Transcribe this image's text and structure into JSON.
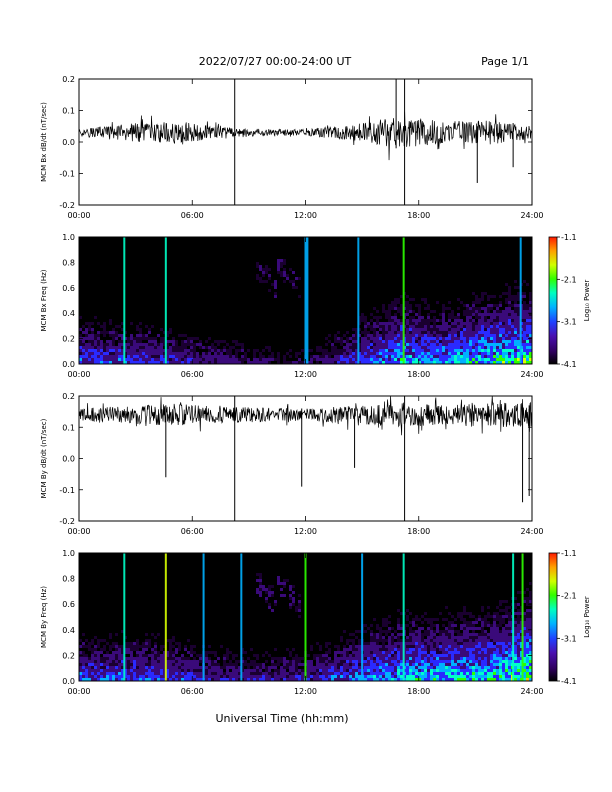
{
  "header": {
    "title": "2022/07/27  00:00-24:00 UT",
    "page": "Page 1/1"
  },
  "footer": {
    "xlabel": "Universal Time (hh:mm)"
  },
  "colors": {
    "trace": "#000000",
    "colormap": [
      "#000000",
      "#1a0030",
      "#3a0a7a",
      "#2a2aff",
      "#00b0ff",
      "#00ffc8",
      "#2dff00",
      "#d8ff00",
      "#ffb400",
      "#ff1e00"
    ]
  },
  "chart_data": [
    {
      "type": "line",
      "panel": "bx-dbdt",
      "ylabel": "MCM Bx dB/dt (nT/sec)",
      "x_range": [
        0,
        24
      ],
      "ylim": [
        -0.2,
        0.2
      ],
      "yticks": [
        "0.2",
        "0.1",
        "0.0",
        "-0.1",
        "-0.2"
      ],
      "xticks": [
        "00:00",
        "06:00",
        "12:00",
        "18:00",
        "24:00"
      ],
      "baseline": 0.03,
      "noise_profile": [
        {
          "hour": 0,
          "amp": 0.012
        },
        {
          "hour": 3,
          "amp": 0.03
        },
        {
          "hour": 5,
          "amp": 0.04
        },
        {
          "hour": 7,
          "amp": 0.02
        },
        {
          "hour": 9,
          "amp": 0.012
        },
        {
          "hour": 12,
          "amp": 0.01
        },
        {
          "hour": 15,
          "amp": 0.03
        },
        {
          "hour": 16.5,
          "amp": 0.05
        },
        {
          "hour": 18,
          "amp": 0.045
        },
        {
          "hour": 20,
          "amp": 0.03
        },
        {
          "hour": 22,
          "amp": 0.04
        },
        {
          "hour": 24,
          "amp": 0.02
        }
      ],
      "spikes": [
        {
          "hour": 8.25,
          "min": -0.2,
          "max": 0.2
        },
        {
          "hour": 17.25,
          "min": -0.2,
          "max": 0.2
        },
        {
          "hour": 16.8,
          "min": -0.02,
          "max": 0.2
        },
        {
          "hour": 21.1,
          "min": -0.13,
          "max": 0.05
        },
        {
          "hour": 23.0,
          "min": -0.08,
          "max": 0.06
        }
      ]
    },
    {
      "type": "heatmap",
      "panel": "bx-spectrogram",
      "ylabel": "MCM Bx Freq (Hz)",
      "x_range": [
        0,
        24
      ],
      "ylim": [
        0,
        1
      ],
      "yticks": [
        "1.0",
        "0.8",
        "0.6",
        "0.4",
        "0.2",
        "0.0"
      ],
      "xticks": [
        "00:00",
        "06:00",
        "12:00",
        "18:00",
        "24:00"
      ],
      "colorbar": {
        "label": "Log₁₀ Power",
        "ticks": [
          "-1.1",
          "-2.1",
          "-3.1",
          "-4.1"
        ],
        "range": [
          -4.1,
          -1.1
        ]
      },
      "activity_profile": [
        {
          "hour": 0,
          "level": 0.35
        },
        {
          "hour": 4,
          "level": 0.3
        },
        {
          "hour": 8,
          "level": 0.2
        },
        {
          "hour": 12,
          "level": 0.15
        },
        {
          "hour": 15,
          "level": 0.35
        },
        {
          "hour": 17,
          "level": 0.5
        },
        {
          "hour": 19,
          "level": 0.45
        },
        {
          "hour": 22,
          "level": 0.55
        },
        {
          "hour": 24,
          "level": 0.6
        }
      ],
      "vertical_bursts": [
        {
          "hour": 2.4,
          "power": 0.7
        },
        {
          "hour": 4.6,
          "power": 0.75
        },
        {
          "hour": 12.0,
          "power": 0.6
        },
        {
          "hour": 12.1,
          "power": 0.55
        },
        {
          "hour": 14.8,
          "power": 0.5
        },
        {
          "hour": 17.2,
          "power": 0.9
        },
        {
          "hour": 23.4,
          "power": 0.5
        }
      ],
      "pulsation_hours": [
        9.9,
        11.1
      ]
    },
    {
      "type": "line",
      "panel": "by-dbdt",
      "ylabel": "MCM By dB/dt (nT/sec)",
      "x_range": [
        0,
        24
      ],
      "ylim": [
        -0.2,
        0.2
      ],
      "yticks": [
        "0.2",
        "0.1",
        "0.0",
        "-0.1",
        "-0.2"
      ],
      "xticks": [
        "00:00",
        "06:00",
        "12:00",
        "18:00",
        "24:00"
      ],
      "baseline": 0.14,
      "noise_profile": [
        {
          "hour": 0,
          "amp": 0.02
        },
        {
          "hour": 3,
          "amp": 0.03
        },
        {
          "hour": 5,
          "amp": 0.035
        },
        {
          "hour": 8,
          "amp": 0.025
        },
        {
          "hour": 12,
          "amp": 0.02
        },
        {
          "hour": 15,
          "amp": 0.03
        },
        {
          "hour": 17,
          "amp": 0.04
        },
        {
          "hour": 19,
          "amp": 0.035
        },
        {
          "hour": 22,
          "amp": 0.04
        },
        {
          "hour": 24,
          "amp": 0.04
        }
      ],
      "spikes": [
        {
          "hour": 4.6,
          "min": -0.06,
          "max": 0.17
        },
        {
          "hour": 8.25,
          "min": -0.2,
          "max": 0.2
        },
        {
          "hour": 11.8,
          "min": -0.09,
          "max": 0.16
        },
        {
          "hour": 14.6,
          "min": -0.03,
          "max": 0.16
        },
        {
          "hour": 17.25,
          "min": -0.2,
          "max": 0.2
        },
        {
          "hour": 23.5,
          "min": -0.14,
          "max": 0.17
        },
        {
          "hour": 23.85,
          "min": -0.12,
          "max": 0.17
        }
      ]
    },
    {
      "type": "heatmap",
      "panel": "by-spectrogram",
      "ylabel": "MCM By Freq (Hz)",
      "x_range": [
        0,
        24
      ],
      "ylim": [
        0,
        1
      ],
      "yticks": [
        "1.0",
        "0.8",
        "0.6",
        "0.4",
        "0.2",
        "0.0"
      ],
      "xticks": [
        "00:00",
        "06:00",
        "12:00",
        "18:00",
        "24:00"
      ],
      "colorbar": {
        "label": "Log₁₀ Power",
        "ticks": [
          "-1.1",
          "-2.1",
          "-3.1",
          "-4.1"
        ],
        "range": [
          -4.1,
          -1.1
        ]
      },
      "activity_profile": [
        {
          "hour": 0,
          "level": 0.35
        },
        {
          "hour": 4,
          "level": 0.35
        },
        {
          "hour": 8,
          "level": 0.25
        },
        {
          "hour": 12,
          "level": 0.25
        },
        {
          "hour": 15,
          "level": 0.4
        },
        {
          "hour": 17,
          "level": 0.5
        },
        {
          "hour": 19,
          "level": 0.5
        },
        {
          "hour": 22,
          "level": 0.55
        },
        {
          "hour": 24,
          "level": 0.7
        }
      ],
      "vertical_bursts": [
        {
          "hour": 2.4,
          "power": 0.65
        },
        {
          "hour": 4.6,
          "power": 0.95
        },
        {
          "hour": 6.6,
          "power": 0.5
        },
        {
          "hour": 8.6,
          "power": 0.6
        },
        {
          "hour": 12.0,
          "power": 0.9
        },
        {
          "hour": 15.0,
          "power": 0.6
        },
        {
          "hour": 17.2,
          "power": 0.75
        },
        {
          "hour": 23.0,
          "power": 0.7
        },
        {
          "hour": 23.5,
          "power": 0.85
        }
      ],
      "pulsation_hours": [
        9.9,
        11.1
      ]
    }
  ]
}
